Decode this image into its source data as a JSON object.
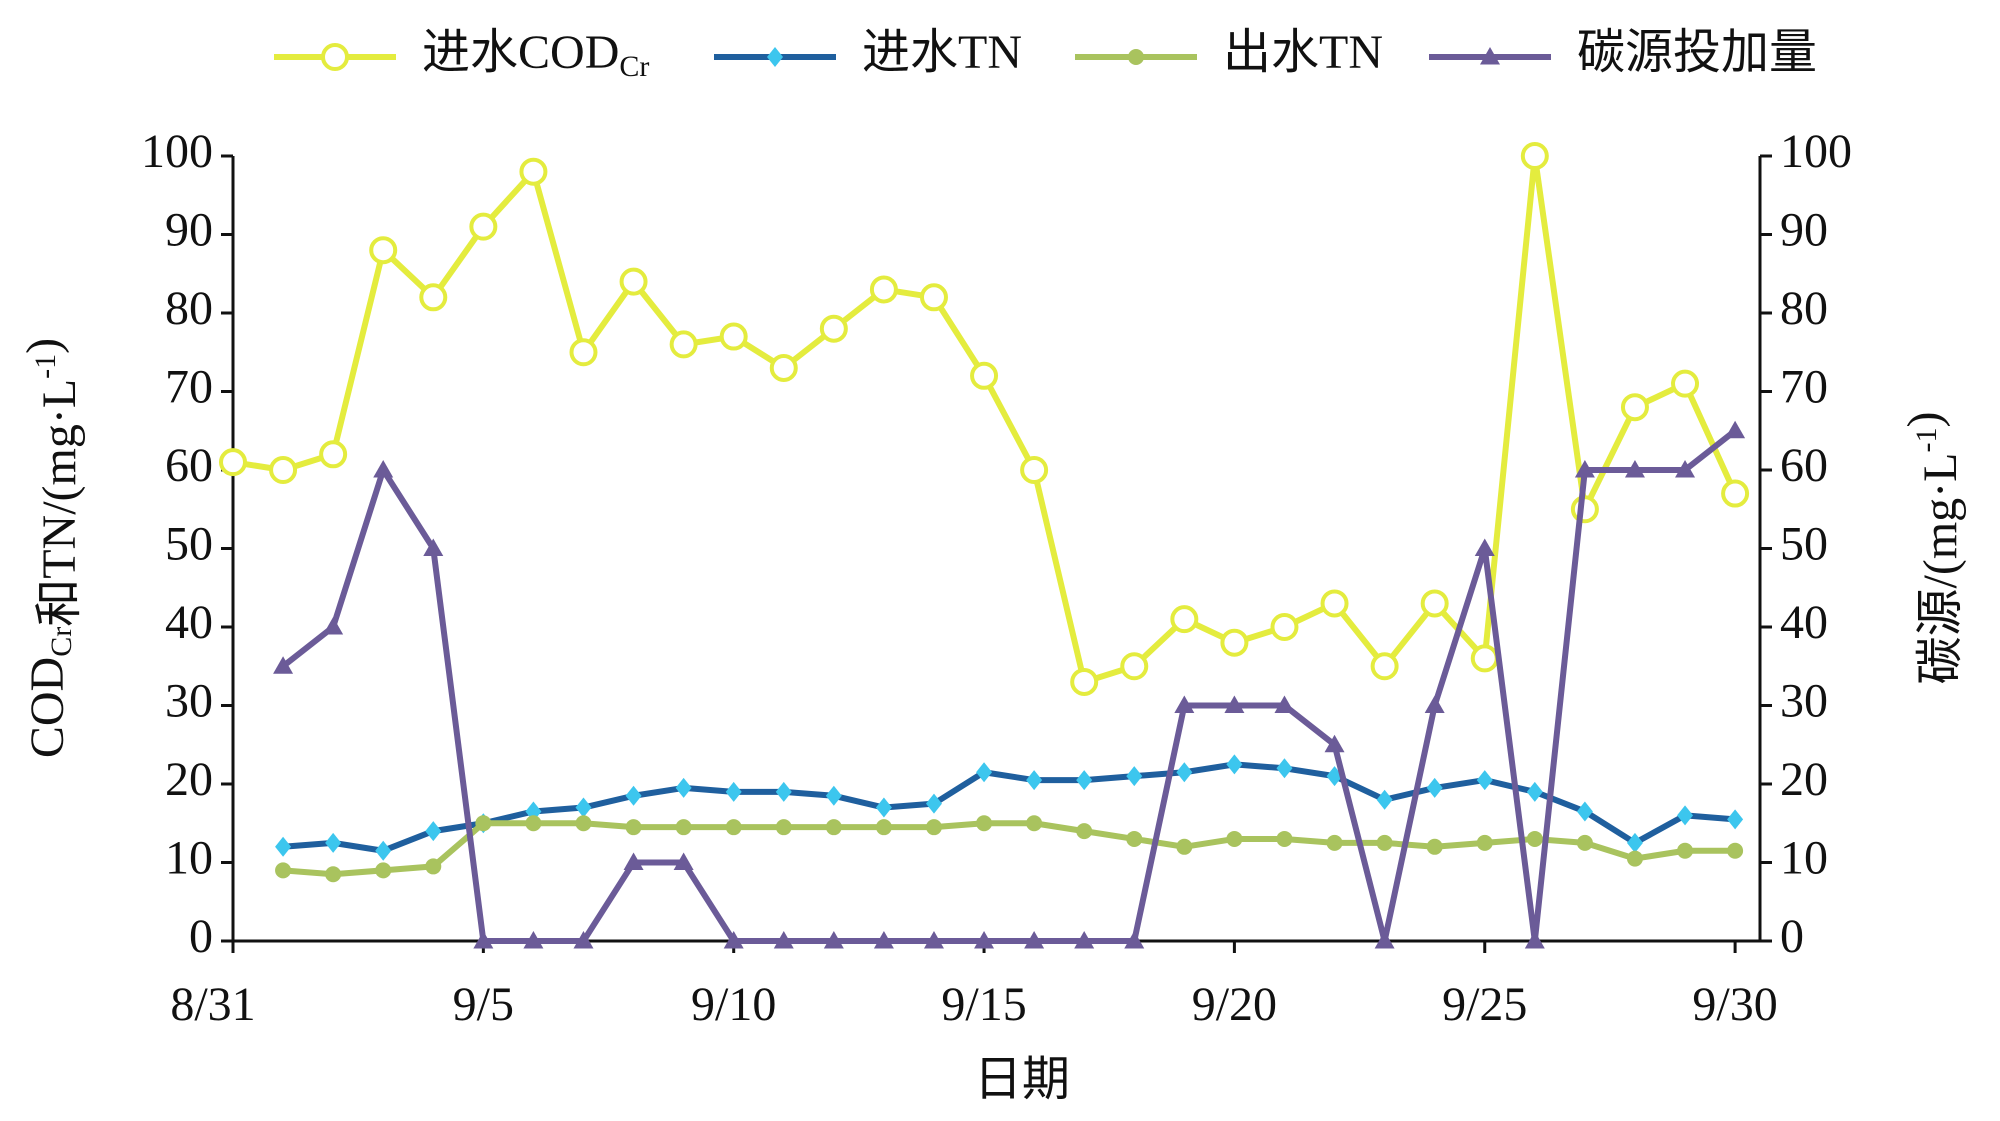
{
  "chart_data": {
    "type": "line",
    "x_label": "日期",
    "y_label": "CODCr和TN/(mg·L-1)",
    "y2_label": "碳源/(mg·L-1)",
    "categories": [
      "8/31",
      null,
      null,
      null,
      null,
      "9/5",
      null,
      null,
      null,
      null,
      "9/10",
      null,
      null,
      null,
      null,
      "9/15",
      null,
      null,
      null,
      null,
      "9/20",
      null,
      null,
      null,
      null,
      "9/25",
      null,
      null,
      null,
      null,
      "9/30"
    ],
    "ylim": [
      0,
      100
    ],
    "yticks": [
      0,
      10,
      20,
      30,
      40,
      50,
      60,
      70,
      80,
      90,
      100
    ],
    "y2lim": [
      0,
      100
    ],
    "y2ticks": [
      0,
      10,
      20,
      30,
      40,
      50,
      60,
      70,
      80,
      90,
      100
    ],
    "legend": "top",
    "series": [
      {
        "name": "进水CODCr",
        "color": "#e4ec3e",
        "marker": "circle-open",
        "values": [
          61,
          60,
          62,
          88,
          82,
          91,
          98,
          75,
          84,
          76,
          77,
          73,
          78,
          83,
          82,
          72,
          60,
          33,
          35,
          41,
          38,
          40,
          43,
          35,
          43,
          36,
          100,
          55,
          68,
          71,
          57
        ]
      },
      {
        "name": "进水TN",
        "color": "#1f5f9e",
        "marker_color": "#3cc6ee",
        "marker": "diamond",
        "values": [
          null,
          12,
          12.5,
          11.5,
          14,
          15,
          16.5,
          17,
          18.5,
          19.5,
          19,
          19,
          18.5,
          17,
          17.5,
          21.5,
          20.5,
          20.5,
          21,
          21.5,
          22.5,
          22,
          21,
          18,
          19.5,
          20.5,
          19,
          16.5,
          12.5,
          16,
          15.5
        ]
      },
      {
        "name": "出水TN",
        "color": "#a9c35e",
        "marker": "circle",
        "values": [
          null,
          9,
          8.5,
          9,
          9.5,
          15,
          15,
          15,
          14.5,
          14.5,
          14.5,
          14.5,
          14.5,
          14.5,
          14.5,
          15,
          15,
          14,
          13,
          12,
          13,
          13,
          12.5,
          12.5,
          12,
          12.5,
          13,
          12.5,
          10.5,
          11.5,
          11.5
        ]
      },
      {
        "name": "碳源投加量",
        "color": "#6b5b98",
        "marker": "triangle",
        "axis": "y2",
        "values": [
          null,
          35,
          40,
          60,
          50,
          0,
          0,
          0,
          10,
          10,
          0,
          0,
          0,
          0,
          0,
          0,
          0,
          0,
          0,
          30,
          30,
          30,
          25,
          0,
          30,
          50,
          0,
          60,
          60,
          60,
          65
        ]
      }
    ]
  }
}
